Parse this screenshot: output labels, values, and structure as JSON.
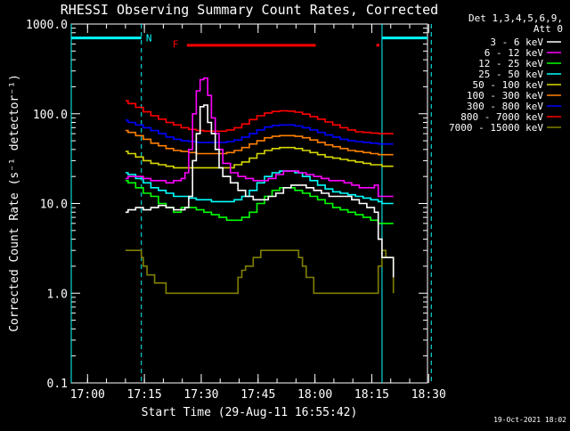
{
  "chart_data": {
    "type": "line",
    "title": "RHESSI Observing Summary Count Rates, Corrected",
    "xlabel": "Start Time (29-Aug-11 16:55:42)",
    "ylabel": "Corrected Count Rate (s⁻¹ detector⁻¹)",
    "y_scale": "log",
    "ylim": [
      0.1,
      1000
    ],
    "y_ticks": [
      "0.1",
      "1.0",
      "10.0",
      "100.0",
      "1000.0"
    ],
    "x_range_min": [
      0,
      94
    ],
    "x_ticks": [
      {
        "min": 4.3,
        "label": "17:00"
      },
      {
        "min": 19.3,
        "label": "17:15"
      },
      {
        "min": 34.3,
        "label": "17:30"
      },
      {
        "min": 49.3,
        "label": "17:45"
      },
      {
        "min": 64.3,
        "label": "18:00"
      },
      {
        "min": 79.3,
        "label": "18:15"
      },
      {
        "min": 94.3,
        "label": "18:30"
      }
    ],
    "grid": false,
    "legend_position": "top-right",
    "detector_info": [
      "Det 1,3,4,5,6,9,",
      "Att 0"
    ],
    "timestamp": "19-Oct-2021 18:02",
    "annotations": [
      {
        "label": "N",
        "x_min": 20.5,
        "y": 700,
        "color": "#00ffff"
      },
      {
        "label": "F",
        "x_min": 27.5,
        "y": 600,
        "color": "#ff0000"
      }
    ],
    "bars": [
      {
        "name": "night",
        "color": "#00ffff",
        "y": 700,
        "x": [
          [
            0,
            18.5
          ],
          [
            82,
            95
          ]
        ]
      },
      {
        "name": "flare",
        "color": "#ff0000",
        "y": 580,
        "x": [
          [
            30.5,
            64.5
          ],
          [
            80.5,
            81.3
          ]
        ]
      }
    ],
    "vlines": [
      {
        "x": 0,
        "color": "#00ffff",
        "style": "solid"
      },
      {
        "x": 18.5,
        "color": "#00ffff",
        "style": "dash"
      },
      {
        "x": 82,
        "color": "#00ffff",
        "style": "solid"
      },
      {
        "x": 95,
        "color": "#00ffff",
        "style": "dash"
      }
    ],
    "series": [
      {
        "name": "3 - 6 keV",
        "color": "#ffffff",
        "x": [
          14.3,
          15,
          17,
          19,
          21,
          23,
          25,
          27,
          29,
          30,
          31,
          32,
          33,
          34,
          35,
          36,
          37,
          38,
          39,
          40,
          42,
          44,
          46,
          48,
          50,
          52,
          54,
          56,
          58,
          60,
          62,
          64,
          66,
          68,
          70,
          72,
          74,
          76,
          78,
          80,
          81,
          82,
          83,
          85
        ],
        "y": [
          8,
          8.5,
          9,
          8.5,
          9,
          9.5,
          9,
          8.5,
          8.5,
          9,
          12,
          30,
          60,
          120,
          125,
          80,
          60,
          40,
          25,
          20,
          17,
          14,
          12,
          11,
          11,
          12,
          13,
          15,
          16,
          16,
          15,
          14,
          13,
          12,
          12,
          12,
          11,
          10,
          9,
          8,
          4,
          2.5,
          2.5,
          1.5
        ]
      },
      {
        "name": "6 - 12 keV",
        "color": "#ff00ff",
        "x": [
          14.3,
          15,
          17,
          19,
          21,
          23,
          25,
          27,
          29,
          30,
          31,
          32,
          33,
          34,
          35,
          36,
          37,
          38,
          39,
          40,
          42,
          44,
          46,
          48,
          50,
          52,
          54,
          56,
          58,
          60,
          62,
          64,
          66,
          68,
          70,
          72,
          74,
          76,
          78,
          80,
          81,
          82,
          83,
          85
        ],
        "y": [
          19,
          20,
          20,
          19,
          18,
          18,
          17,
          18,
          19,
          22,
          40,
          100,
          180,
          240,
          250,
          160,
          90,
          60,
          40,
          28,
          22,
          20,
          19,
          18,
          18,
          19,
          21,
          23,
          23,
          22,
          21,
          20,
          19,
          18,
          18,
          17,
          16,
          15,
          15,
          16,
          12,
          12,
          12,
          12
        ]
      },
      {
        "name": "12 - 25 keV",
        "color": "#00ff00",
        "x": [
          14.3,
          15,
          17,
          19,
          21,
          23,
          25,
          27,
          29,
          31,
          33,
          35,
          37,
          39,
          41,
          43,
          45,
          47,
          49,
          51,
          53,
          55,
          57,
          59,
          61,
          63,
          65,
          67,
          69,
          71,
          73,
          75,
          77,
          79,
          81,
          82,
          83,
          85
        ],
        "y": [
          18,
          17,
          15,
          13,
          12,
          10,
          9,
          8,
          9,
          9,
          8.5,
          8,
          7.5,
          7,
          6.5,
          6.5,
          7,
          8,
          10,
          12,
          14,
          15,
          15,
          14,
          13,
          12,
          11,
          10,
          9,
          8.5,
          8,
          7.5,
          7,
          6.5,
          6,
          6,
          6,
          6
        ]
      },
      {
        "name": "25 - 50 keV",
        "color": "#00ffff",
        "x": [
          14.3,
          15,
          17,
          19,
          21,
          23,
          25,
          27,
          29,
          31,
          33,
          35,
          37,
          39,
          41,
          43,
          45,
          47,
          49,
          51,
          53,
          55,
          57,
          59,
          61,
          63,
          65,
          67,
          69,
          71,
          73,
          75,
          77,
          79,
          81,
          82,
          83,
          85
        ],
        "y": [
          22,
          21,
          19,
          17,
          15,
          14,
          13,
          12,
          12,
          11.5,
          11,
          11,
          10.5,
          10.5,
          10.5,
          11,
          12,
          14,
          17,
          20,
          22,
          23,
          23,
          22,
          20,
          18,
          16,
          14.5,
          13.5,
          13,
          12.5,
          12,
          11.5,
          11,
          10.5,
          10,
          10,
          10
        ]
      },
      {
        "name": "50 - 100 keV",
        "color": "#d8d800",
        "x": [
          14.3,
          15,
          17,
          19,
          21,
          23,
          25,
          27,
          29,
          31,
          33,
          35,
          37,
          39,
          41,
          43,
          45,
          47,
          49,
          51,
          53,
          55,
          57,
          59,
          61,
          63,
          65,
          67,
          69,
          71,
          73,
          75,
          77,
          79,
          81,
          82,
          83,
          85
        ],
        "y": [
          38,
          36,
          33,
          30,
          28,
          27,
          26,
          25,
          25,
          25,
          25,
          25,
          25,
          25,
          25,
          27,
          29,
          32,
          36,
          39,
          41,
          42,
          42,
          41,
          39,
          37,
          35,
          33,
          32,
          31,
          30,
          29,
          28,
          27,
          27,
          26,
          26,
          26
        ]
      },
      {
        "name": "100 - 300 keV",
        "color": "#ff8000",
        "x": [
          14.3,
          15,
          17,
          19,
          21,
          23,
          25,
          27,
          29,
          31,
          33,
          35,
          37,
          39,
          41,
          43,
          45,
          47,
          49,
          51,
          53,
          55,
          57,
          59,
          61,
          63,
          65,
          67,
          69,
          71,
          73,
          75,
          77,
          79,
          81,
          82,
          83,
          85
        ],
        "y": [
          65,
          62,
          57,
          52,
          47,
          44,
          41,
          39,
          38,
          37,
          36,
          36,
          36,
          36,
          37,
          39,
          42,
          46,
          50,
          54,
          56,
          57,
          57,
          56,
          54,
          51,
          48,
          45,
          43,
          41,
          39,
          38,
          37,
          36,
          35,
          35,
          35,
          35
        ]
      },
      {
        "name": "300 - 800 keV",
        "color": "#0000ff",
        "x": [
          14.3,
          15,
          17,
          19,
          21,
          23,
          25,
          27,
          29,
          31,
          33,
          35,
          37,
          39,
          41,
          43,
          45,
          47,
          49,
          51,
          53,
          55,
          57,
          59,
          61,
          63,
          65,
          67,
          69,
          71,
          73,
          75,
          77,
          79,
          81,
          82,
          83,
          85
        ],
        "y": [
          85,
          80,
          75,
          70,
          65,
          60,
          55,
          52,
          50,
          49,
          48,
          48,
          48,
          48,
          49,
          51,
          55,
          60,
          66,
          71,
          74,
          75,
          75,
          73,
          70,
          66,
          62,
          58,
          55,
          52,
          50,
          49,
          48,
          47,
          46,
          46,
          46,
          46
        ]
      },
      {
        "name": "800 - 7000 keV",
        "color": "#ff0000",
        "x": [
          14.3,
          15,
          17,
          19,
          21,
          23,
          25,
          27,
          29,
          31,
          33,
          35,
          37,
          39,
          41,
          43,
          45,
          47,
          49,
          51,
          53,
          55,
          57,
          59,
          61,
          63,
          65,
          67,
          69,
          71,
          73,
          75,
          77,
          79,
          81,
          82,
          83,
          85
        ],
        "y": [
          140,
          130,
          118,
          105,
          95,
          87,
          80,
          75,
          70,
          67,
          65,
          64,
          64,
          64,
          66,
          70,
          77,
          86,
          95,
          102,
          106,
          108,
          107,
          104,
          99,
          93,
          87,
          81,
          75,
          70,
          66,
          63,
          62,
          61,
          60,
          60,
          60,
          60
        ]
      },
      {
        "name": "7000 - 15000 keV",
        "color": "#808000",
        "x": [
          14.3,
          15,
          17,
          18.5,
          19,
          20,
          22,
          25,
          28,
          31,
          34,
          37,
          40,
          42,
          44,
          45,
          46,
          48,
          50,
          52,
          54,
          56,
          58,
          60,
          61,
          62,
          64,
          66,
          68,
          70,
          72,
          74,
          76,
          78,
          80,
          81,
          82,
          83,
          85
        ],
        "y": [
          3,
          3,
          3,
          2.5,
          2,
          1.6,
          1.3,
          1,
          1,
          1,
          1,
          1,
          1,
          1,
          1.5,
          1.8,
          2,
          2.5,
          3,
          3,
          3,
          3,
          3,
          2.5,
          2,
          1.5,
          1,
          1,
          1,
          1,
          1,
          1,
          1,
          1,
          1,
          2,
          3,
          2.5,
          1
        ]
      }
    ]
  }
}
